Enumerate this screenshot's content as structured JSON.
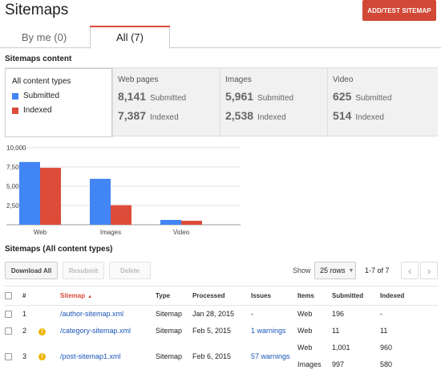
{
  "header": {
    "title": "Sitemaps",
    "add_button": "ADD/TEST SITEMAP"
  },
  "tabs": [
    {
      "label": "By me (0)",
      "active": false
    },
    {
      "label": "All (7)",
      "active": true
    }
  ],
  "content_section": {
    "title": "Sitemaps content",
    "all_label": "All content types",
    "legend": [
      {
        "label": "Submitted",
        "color": "#4285f4"
      },
      {
        "label": "Indexed",
        "color": "#dd4b39"
      }
    ]
  },
  "types": [
    {
      "name": "Web pages",
      "submitted": "8,141",
      "indexed": "7,387",
      "submitted_label": "Submitted",
      "indexed_label": "Indexed"
    },
    {
      "name": "Images",
      "submitted": "5,961",
      "indexed": "2,538",
      "submitted_label": "Submitted",
      "indexed_label": "Indexed"
    },
    {
      "name": "Video",
      "submitted": "625",
      "indexed": "514",
      "submitted_label": "Submitted",
      "indexed_label": "Indexed"
    }
  ],
  "chart_data": {
    "type": "bar",
    "categories": [
      "Web",
      "Images",
      "Video"
    ],
    "series": [
      {
        "name": "Submitted",
        "values": [
          8141,
          5961,
          625
        ],
        "color": "#4285f4"
      },
      {
        "name": "Indexed",
        "values": [
          7387,
          2538,
          514
        ],
        "color": "#dd4b39"
      }
    ],
    "ylim": [
      0,
      10000
    ],
    "yticks": [
      "10,000",
      "7,500",
      "5,000",
      "2,500"
    ],
    "grid": true
  },
  "list_section": {
    "title": "Sitemaps (All content types)"
  },
  "toolbar": {
    "download": "Download All",
    "resubmit": "Resubmit",
    "delete": "Delete",
    "show_label": "Show",
    "rows": "25 rows",
    "range": "1-7 of 7"
  },
  "table": {
    "headers": {
      "num": "#",
      "sitemap": "Sitemap",
      "type": "Type",
      "processed": "Processed",
      "issues": "Issues",
      "items": "Items",
      "submitted": "Submitted",
      "indexed": "Indexed"
    },
    "rows": [
      {
        "num": "1",
        "warn": false,
        "sitemap": "/author-sitemap.xml",
        "type": "Sitemap",
        "processed": "Jan 28, 2015",
        "issues": "-",
        "issues_link": false,
        "items": [
          {
            "item": "Web",
            "submitted": "196",
            "indexed": "-"
          }
        ]
      },
      {
        "num": "2",
        "warn": true,
        "sitemap": "/category-sitemap.xml",
        "type": "Sitemap",
        "processed": "Feb 5, 2015",
        "issues": "1 warnings",
        "issues_link": true,
        "items": [
          {
            "item": "Web",
            "submitted": "11",
            "indexed": "11"
          }
        ]
      },
      {
        "num": "3",
        "warn": true,
        "sitemap": "/post-sitemap1.xml",
        "type": "Sitemap",
        "processed": "Feb 6, 2015",
        "issues": "57 warnings",
        "issues_link": true,
        "items": [
          {
            "item": "Web",
            "submitted": "1,001",
            "indexed": "960"
          },
          {
            "item": "Images",
            "submitted": "997",
            "indexed": "580"
          }
        ]
      }
    ]
  }
}
